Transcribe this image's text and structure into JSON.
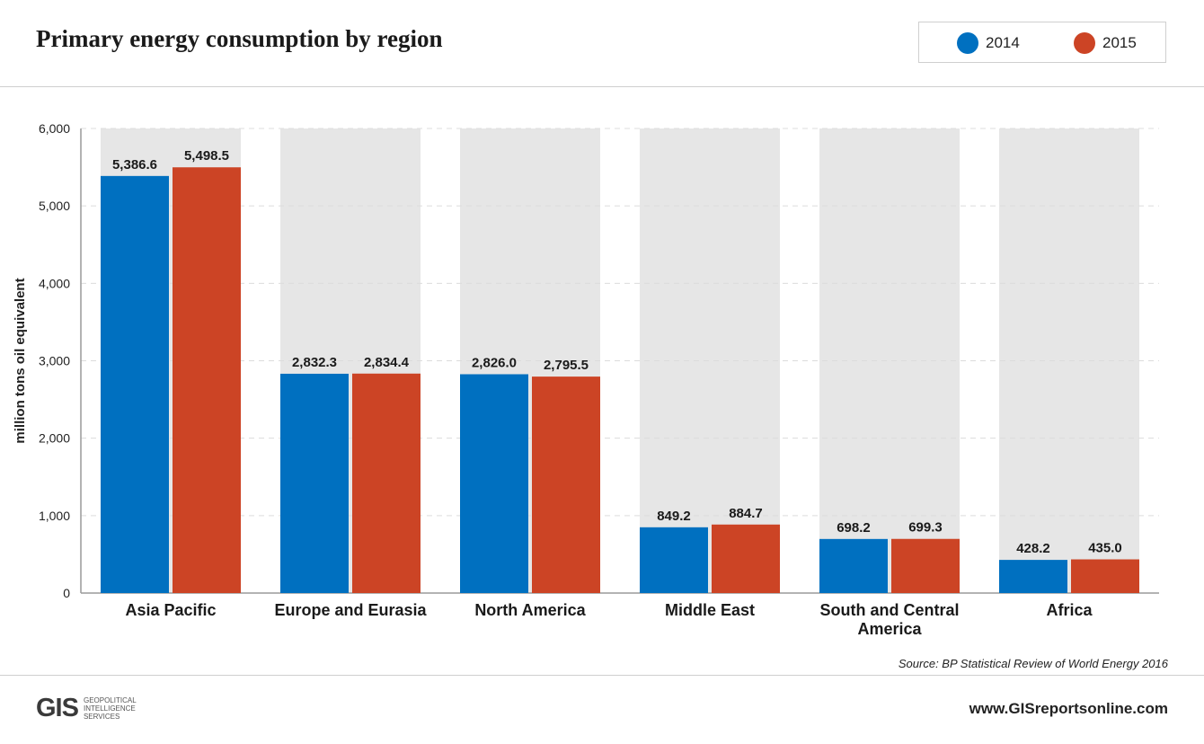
{
  "header": {
    "title": "Primary energy consumption by region"
  },
  "colors": {
    "series_2014": "#0070c0",
    "series_2015": "#cc4425",
    "column_background": "#e6e6e6"
  },
  "chart_data": {
    "type": "bar",
    "title": "Primary energy consumption by region",
    "categories": [
      "Asia Pacific",
      "Europe and Eurasia",
      "North America",
      "Middle East",
      "South and Central America",
      "Africa"
    ],
    "series": [
      {
        "name": "2014",
        "values": [
          5386.6,
          2832.3,
          2826.0,
          849.2,
          698.2,
          428.2
        ],
        "labels": [
          "5,386.6",
          "2,832.3",
          "2,826.0",
          "849.2",
          "698.2",
          "428.2"
        ]
      },
      {
        "name": "2015",
        "values": [
          5498.5,
          2834.4,
          2795.5,
          884.7,
          699.3,
          435.0
        ],
        "labels": [
          "5,498.5",
          "2,834.4",
          "2,795.5",
          "884.7",
          "699.3",
          "435.0"
        ]
      }
    ],
    "xlabel": "",
    "ylabel": "million tons oil equivalent",
    "ylim": [
      0,
      6000
    ],
    "yticks": [
      0,
      1000,
      2000,
      3000,
      4000,
      5000,
      6000
    ],
    "ytick_labels": [
      "0",
      "1,000",
      "2,000",
      "3,000",
      "4,000",
      "5,000",
      "6,000"
    ],
    "grid": true,
    "legend": "top-right"
  },
  "footer": {
    "source": "Source: BP Statistical Review of World Energy 2016",
    "website": "www.GISreportsonline.com",
    "logo_mark": "GIS",
    "logo_line1": "GEOPOLITICAL",
    "logo_line2": "INTELLIGENCE",
    "logo_line3": "SERVICES"
  }
}
